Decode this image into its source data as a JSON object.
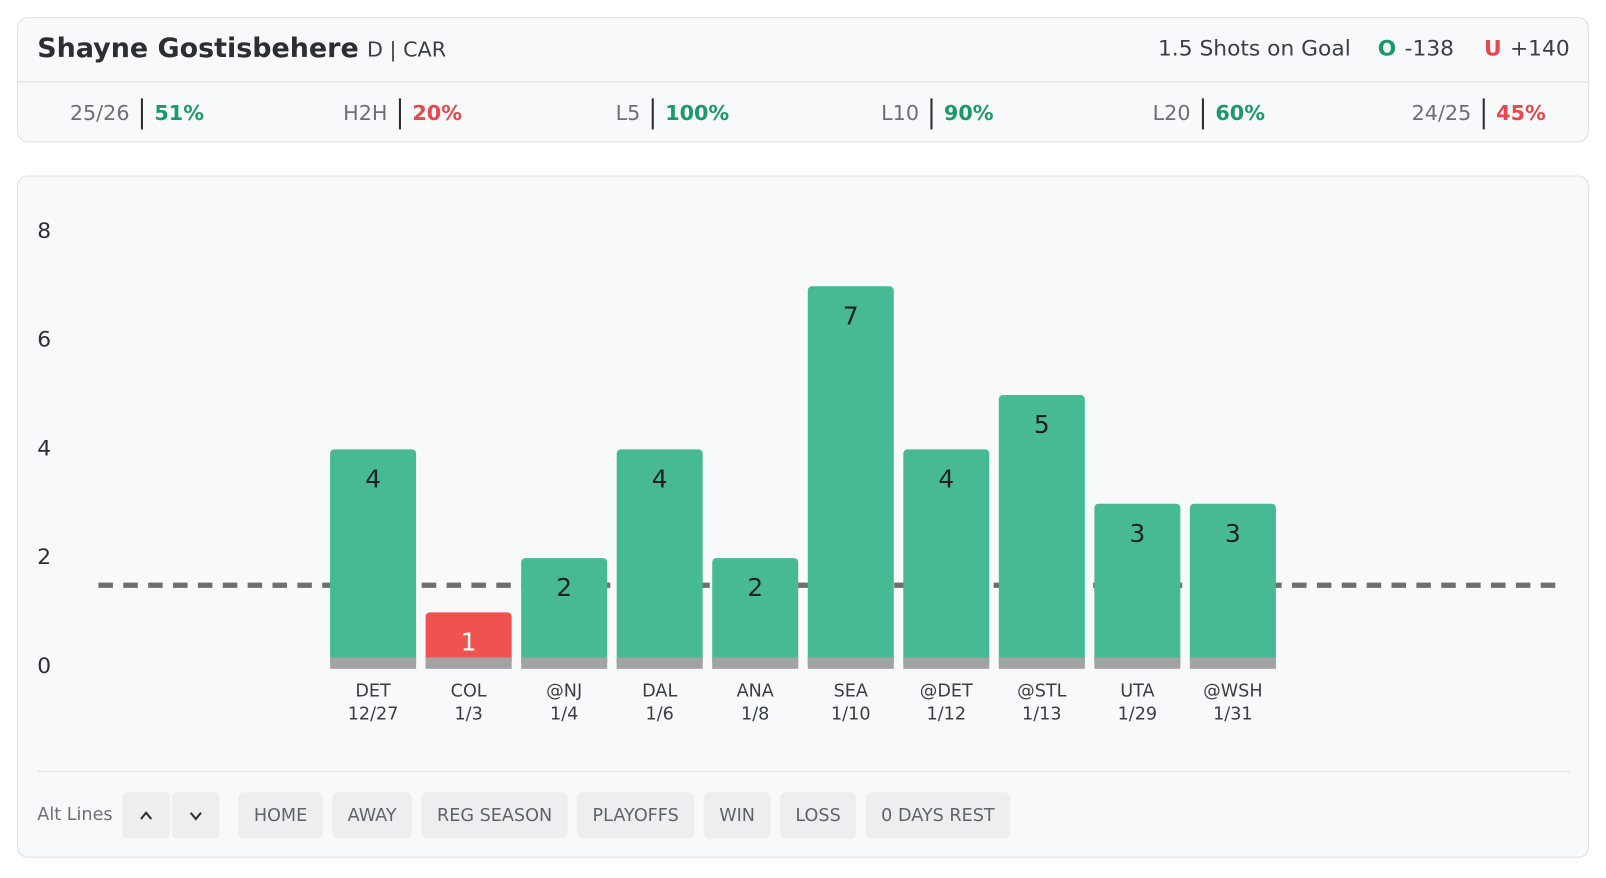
{
  "header": {
    "name": "Shayne Gostisbehere",
    "position_team": "D | CAR",
    "prop": "1.5 Shots on Goal",
    "over": {
      "label": "O",
      "odds": "-138",
      "color": "#1a9a6a"
    },
    "under": {
      "label": "U",
      "odds": "+140",
      "color": "#e5484d"
    }
  },
  "stats": [
    {
      "label": "25/26",
      "value": "51%",
      "color": "#1a9a6a"
    },
    {
      "label": "H2H",
      "value": "20%",
      "color": "#e5484d"
    },
    {
      "label": "L5",
      "value": "100%",
      "color": "#1a9a6a"
    },
    {
      "label": "L10",
      "value": "90%",
      "color": "#1a9a6a"
    },
    {
      "label": "L20",
      "value": "60%",
      "color": "#1a9a6a"
    },
    {
      "label": "24/25",
      "value": "45%",
      "color": "#e5484d"
    }
  ],
  "chart_data": {
    "type": "bar",
    "categories": [
      "DET",
      "COL",
      "@NJ",
      "DAL",
      "ANA",
      "SEA",
      "@DET",
      "@STL",
      "UTA",
      "@WSH"
    ],
    "dates": [
      "12/27",
      "1/3",
      "1/4",
      "1/6",
      "1/8",
      "1/10",
      "1/12",
      "1/13",
      "1/29",
      "1/31"
    ],
    "values": [
      4,
      1,
      2,
      4,
      2,
      7,
      4,
      5,
      3,
      3
    ],
    "colors": [
      "#47b993",
      "#ef5350",
      "#47b993",
      "#47b993",
      "#47b993",
      "#47b993",
      "#47b993",
      "#47b993",
      "#47b993",
      "#47b993"
    ],
    "line_value": 1.5,
    "ylim": [
      0,
      8
    ],
    "yticks": [
      0,
      2,
      4,
      6,
      8
    ]
  },
  "footer": {
    "label": "Alt Lines",
    "filters": [
      "HOME",
      "AWAY",
      "REG SEASON",
      "PLAYOFFS",
      "WIN",
      "LOSS",
      "0 DAYS REST"
    ]
  }
}
